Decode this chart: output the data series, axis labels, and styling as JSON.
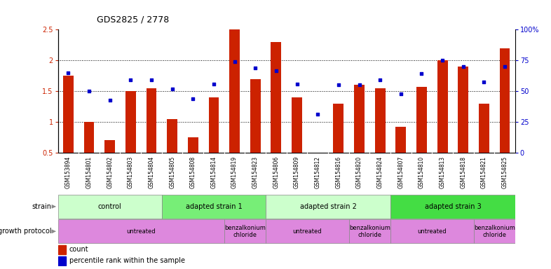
{
  "title": "GDS2825 / 2778",
  "samples": [
    "GSM153894",
    "GSM154801",
    "GSM154802",
    "GSM154803",
    "GSM154804",
    "GSM154805",
    "GSM154808",
    "GSM154814",
    "GSM154819",
    "GSM154823",
    "GSM154806",
    "GSM154809",
    "GSM154812",
    "GSM154816",
    "GSM154820",
    "GSM154824",
    "GSM154807",
    "GSM154810",
    "GSM154813",
    "GSM154818",
    "GSM154821",
    "GSM154825"
  ],
  "bar_values": [
    1.75,
    1.0,
    0.7,
    1.5,
    1.55,
    1.05,
    0.75,
    1.4,
    2.5,
    1.7,
    2.3,
    1.4,
    0.05,
    1.3,
    1.6,
    1.55,
    0.92,
    1.57,
    2.0,
    1.9,
    1.3,
    2.2
  ],
  "dot_values": [
    1.8,
    1.5,
    1.35,
    1.68,
    1.68,
    1.53,
    1.38,
    1.62,
    1.98,
    1.88,
    1.83,
    1.62,
    1.12,
    1.6,
    1.6,
    1.68,
    1.45,
    1.78,
    2.0,
    1.9,
    1.65,
    1.9
  ],
  "bar_color": "#cc2200",
  "dot_color": "#0000cc",
  "ylim": [
    0.5,
    2.5
  ],
  "yticks": [
    0.5,
    1.0,
    1.5,
    2.0,
    2.5
  ],
  "ytick_labels": [
    "0.5",
    "1",
    "1.5",
    "2",
    "2.5"
  ],
  "y2ticks": [
    0,
    25,
    50,
    75,
    100
  ],
  "y2tick_labels": [
    "0",
    "25",
    "50",
    "75",
    "100%"
  ],
  "dotted_lines": [
    1.0,
    1.5,
    2.0
  ],
  "strain_data": [
    {
      "start": 0,
      "end": 4,
      "label": "control",
      "color": "#ccffcc"
    },
    {
      "start": 5,
      "end": 9,
      "label": "adapted strain 1",
      "color": "#77ee77"
    },
    {
      "start": 10,
      "end": 15,
      "label": "adapted strain 2",
      "color": "#ccffcc"
    },
    {
      "start": 16,
      "end": 21,
      "label": "adapted strain 3",
      "color": "#44dd44"
    }
  ],
  "growth_data": [
    {
      "start": 0,
      "end": 7,
      "label": "untreated",
      "color": "#dd88dd"
    },
    {
      "start": 8,
      "end": 9,
      "label": "benzalkonium\nchloride",
      "color": "#dd88dd"
    },
    {
      "start": 10,
      "end": 13,
      "label": "untreated",
      "color": "#dd88dd"
    },
    {
      "start": 14,
      "end": 15,
      "label": "benzalkonium\nchloride",
      "color": "#dd88dd"
    },
    {
      "start": 16,
      "end": 19,
      "label": "untreated",
      "color": "#dd88dd"
    },
    {
      "start": 20,
      "end": 21,
      "label": "benzalkonium\nchloride",
      "color": "#dd88dd"
    }
  ],
  "legend_count": "count",
  "legend_pct": "percentile rank within the sample",
  "background_color": "#ffffff",
  "tick_bg_color": "#dddddd"
}
